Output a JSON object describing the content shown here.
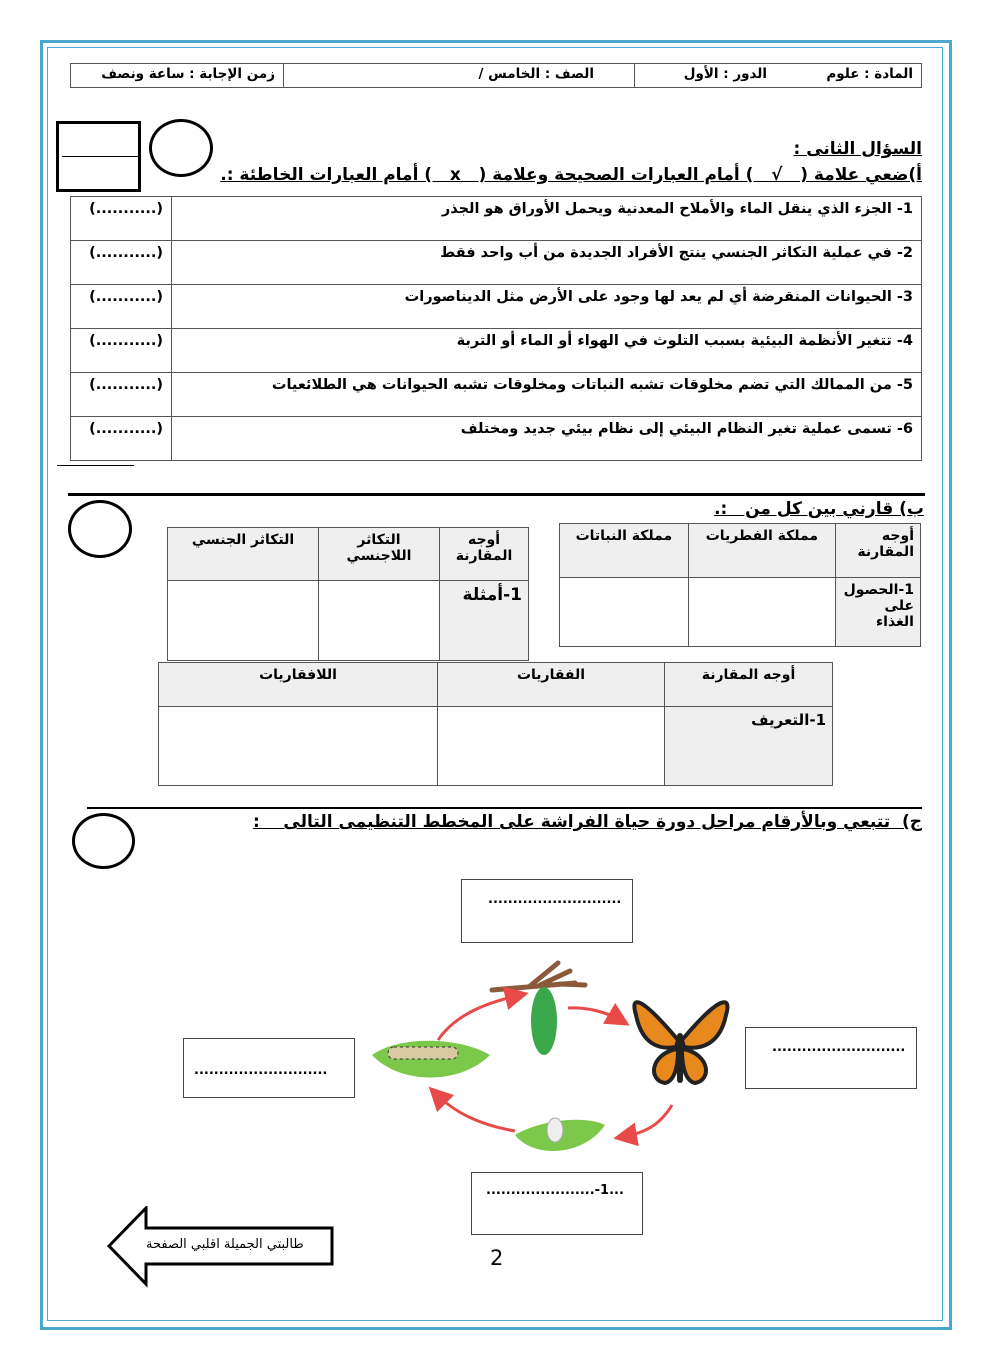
{
  "header": {
    "subject": "المادة : علوم",
    "term": "الدور : الأول",
    "grade": "الصف : الخامس /",
    "duration": "زمن الإجابة :   ساعة ونصف"
  },
  "question2": {
    "title": "السؤال الثانى :",
    "part_a": {
      "instruction": "أ)ضعي علامة (   √   ) أمام العبارات الصحيحة وعلامة (   x   ) أمام العبارات الخاطئة :.",
      "answer_blank": "(...........)",
      "items": [
        "1-  الجزء الذي ينقل الماء والأملاح المعدنية ويحمل الأوراق هو الجذر",
        "2-  في عملية التكاثر الجنسي ينتج الأفراد الجديدة من أب واحد فقط",
        "3-  الحيوانات المنقرضة أي لم يعد لها وجود على الأرض  مثل الديناصورات",
        "4-  تتغير الأنظمة البيئية بسبب التلوث في الهواء أو الماء أو التربة",
        "5-  من الممالك  التي تضم  مخلوقات تشبه النباتات ومخلوقات تشبه الحيوانات  هي الطلائعيات",
        "6-  تسمى عملية تغير النظام البيئي إلى نظام بيئي جديد ومختلف"
      ]
    },
    "part_b": {
      "instruction": "ب) قارني بين كل من   :.",
      "table_kingdoms": {
        "headers": [
          "أوجه المقارنة",
          "مملكة الفطريات",
          "مملكة النباتات"
        ],
        "rows": [
          [
            "1-الحصول على الغذاء",
            "",
            ""
          ]
        ]
      },
      "table_reproduction": {
        "headers": [
          "أوجه المقارنة",
          "التكاثر اللاجنسي",
          "التكاثر الجنسي"
        ],
        "rows": [
          [
            "1-أمثلة",
            "",
            ""
          ]
        ]
      },
      "table_vertebrates": {
        "headers": [
          "أوجه المقارنة",
          "الفقاريات",
          "اللافقاريات"
        ],
        "rows": [
          [
            "1-التعريف",
            "",
            ""
          ]
        ]
      }
    },
    "part_c": {
      "instruction": "ج)  تتبعي وبالأرقام مراحل دورة حياة الفراشة على المخطط التنظيمى التالى    :",
      "boxes": {
        "top": "...........................",
        "left": "...........................",
        "right": "...........................",
        "bottom": "......................-1..."
      }
    }
  },
  "footer": {
    "turn_page": "طالبتي الجميلة اقلبي الصفحة",
    "page_number": "2"
  },
  "colors": {
    "page_border": "#4aa8cc",
    "arrows": "#e84a4a",
    "leaf": "#7cc84a"
  }
}
